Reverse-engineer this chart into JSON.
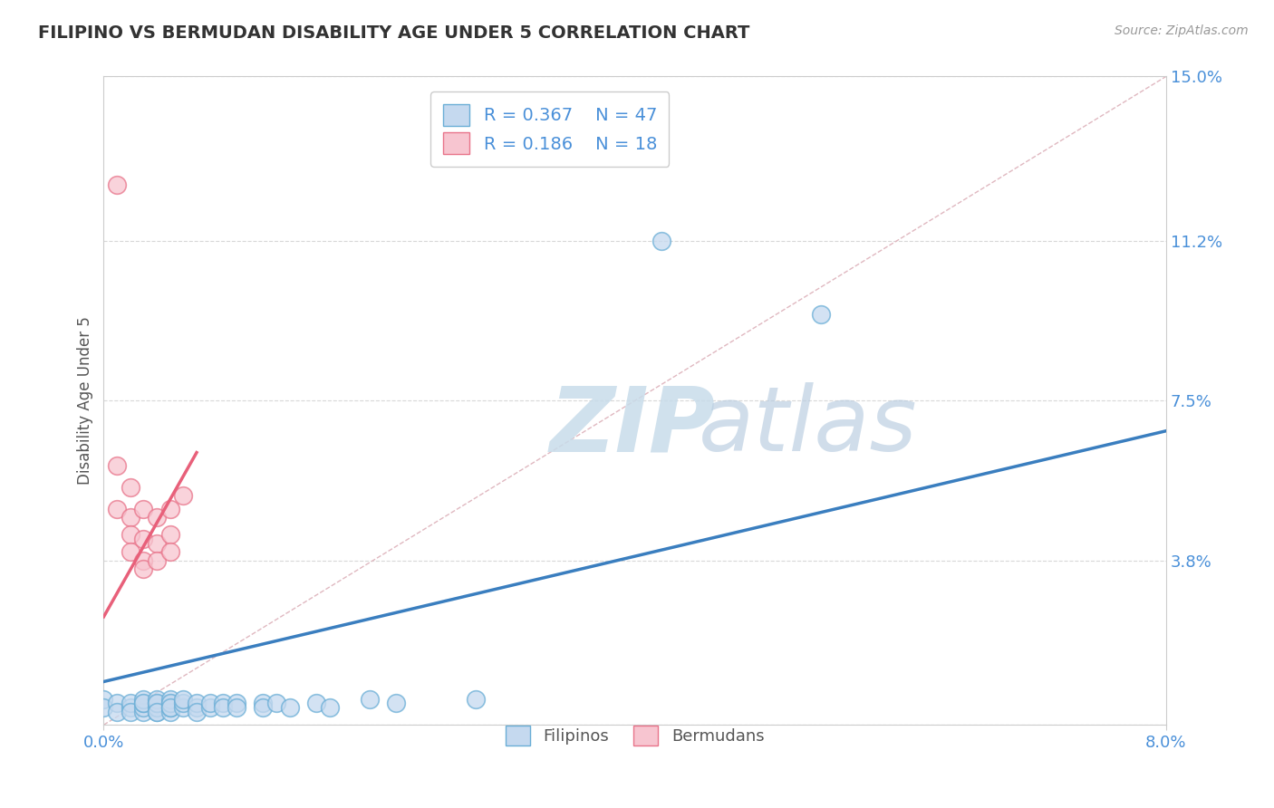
{
  "title": "FILIPINO VS BERMUDAN DISABILITY AGE UNDER 5 CORRELATION CHART",
  "source": "Source: ZipAtlas.com",
  "ylabel": "Disability Age Under 5",
  "xlim": [
    0.0,
    0.08
  ],
  "ylim": [
    0.0,
    0.15
  ],
  "ytick_positions": [
    0.0,
    0.038,
    0.075,
    0.112,
    0.15
  ],
  "ytick_labels": [
    "",
    "3.8%",
    "7.5%",
    "11.2%",
    "15.0%"
  ],
  "filipino_R": 0.367,
  "filipino_N": 47,
  "bermudan_R": 0.186,
  "bermudan_N": 18,
  "filipino_color": "#c5d9ef",
  "bermudan_color": "#f7c5d0",
  "filipino_edge_color": "#6aaed6",
  "bermudan_edge_color": "#e8748a",
  "filipino_line_color": "#3a7ebf",
  "bermudan_line_color": "#e8607a",
  "legend_box_color_filipino": "#c5d9ef",
  "legend_box_color_bermudan": "#f7c5d0",
  "filipino_scatter": [
    [
      0.0,
      0.006
    ],
    [
      0.0,
      0.004
    ],
    [
      0.001,
      0.005
    ],
    [
      0.001,
      0.003
    ],
    [
      0.002,
      0.004
    ],
    [
      0.002,
      0.005
    ],
    [
      0.002,
      0.003
    ],
    [
      0.003,
      0.003
    ],
    [
      0.003,
      0.004
    ],
    [
      0.003,
      0.005
    ],
    [
      0.003,
      0.006
    ],
    [
      0.003,
      0.005
    ],
    [
      0.004,
      0.003
    ],
    [
      0.004,
      0.004
    ],
    [
      0.004,
      0.005
    ],
    [
      0.004,
      0.006
    ],
    [
      0.004,
      0.005
    ],
    [
      0.004,
      0.003
    ],
    [
      0.005,
      0.003
    ],
    [
      0.005,
      0.004
    ],
    [
      0.005,
      0.005
    ],
    [
      0.005,
      0.006
    ],
    [
      0.005,
      0.005
    ],
    [
      0.005,
      0.004
    ],
    [
      0.006,
      0.004
    ],
    [
      0.006,
      0.005
    ],
    [
      0.006,
      0.006
    ],
    [
      0.007,
      0.004
    ],
    [
      0.007,
      0.005
    ],
    [
      0.007,
      0.003
    ],
    [
      0.008,
      0.004
    ],
    [
      0.008,
      0.005
    ],
    [
      0.009,
      0.005
    ],
    [
      0.009,
      0.004
    ],
    [
      0.01,
      0.005
    ],
    [
      0.01,
      0.004
    ],
    [
      0.012,
      0.005
    ],
    [
      0.012,
      0.004
    ],
    [
      0.013,
      0.005
    ],
    [
      0.014,
      0.004
    ],
    [
      0.016,
      0.005
    ],
    [
      0.017,
      0.004
    ],
    [
      0.02,
      0.006
    ],
    [
      0.022,
      0.005
    ],
    [
      0.028,
      0.006
    ],
    [
      0.042,
      0.112
    ],
    [
      0.054,
      0.095
    ]
  ],
  "bermudan_scatter": [
    [
      0.001,
      0.125
    ],
    [
      0.001,
      0.06
    ],
    [
      0.001,
      0.05
    ],
    [
      0.002,
      0.055
    ],
    [
      0.002,
      0.048
    ],
    [
      0.002,
      0.044
    ],
    [
      0.002,
      0.04
    ],
    [
      0.003,
      0.05
    ],
    [
      0.003,
      0.043
    ],
    [
      0.003,
      0.038
    ],
    [
      0.003,
      0.036
    ],
    [
      0.004,
      0.048
    ],
    [
      0.004,
      0.042
    ],
    [
      0.004,
      0.038
    ],
    [
      0.005,
      0.05
    ],
    [
      0.005,
      0.044
    ],
    [
      0.005,
      0.04
    ],
    [
      0.006,
      0.053
    ]
  ],
  "filipino_trendline": [
    [
      0.0,
      0.01
    ],
    [
      0.08,
      0.068
    ]
  ],
  "bermudan_trendline": [
    [
      0.0,
      0.025
    ],
    [
      0.007,
      0.063
    ]
  ],
  "diagonal_dashes_color": "#e0b8c0",
  "background_color": "#ffffff",
  "grid_color": "#d8d8d8",
  "axis_color": "#cccccc",
  "title_color": "#333333",
  "tick_label_color": "#4a90d9",
  "source_color": "#999999",
  "legend_text_color": "#4a90d9",
  "bottom_legend_text_color": "#555555"
}
